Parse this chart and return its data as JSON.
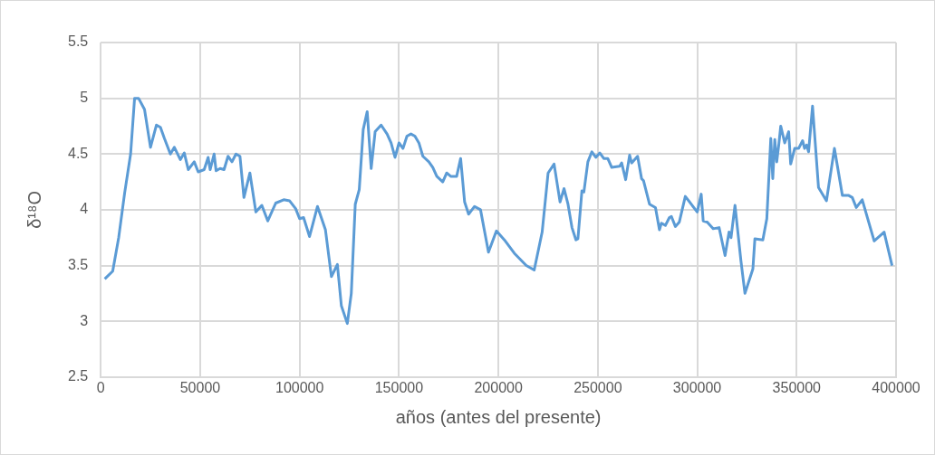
{
  "chart_data": {
    "type": "line",
    "xlabel": "años (antes del presente)",
    "ylabel": "δ¹⁸O",
    "xlim": [
      0,
      400000
    ],
    "xticks": [
      0,
      50000,
      100000,
      150000,
      200000,
      250000,
      300000,
      350000,
      400000
    ],
    "ylim": [
      2.5,
      5.5
    ],
    "yticks": [
      2.5,
      3,
      3.5,
      4,
      4.5,
      5,
      5.5
    ],
    "grid": true,
    "marker": "none",
    "line_style": "solid",
    "series": [
      {
        "color": "#5b9bd5",
        "x": [
          2000,
          6000,
          9000,
          12000,
          15000,
          17000,
          19000,
          22000,
          25000,
          28000,
          30000,
          32000,
          35000,
          37000,
          40000,
          42000,
          44000,
          47000,
          49000,
          52000,
          54000,
          55000,
          57000,
          58000,
          60000,
          62000,
          64000,
          66000,
          68000,
          70000,
          72000,
          75000,
          78000,
          81000,
          84000,
          88000,
          92000,
          95000,
          98000,
          100000,
          102000,
          105000,
          109000,
          113000,
          116000,
          119000,
          121000,
          124000,
          126000,
          128000,
          130000,
          132000,
          134000,
          136000,
          138000,
          141000,
          144000,
          146000,
          148000,
          150000,
          152000,
          154000,
          156000,
          158000,
          160000,
          162000,
          165000,
          167000,
          169000,
          172000,
          174000,
          176000,
          179000,
          181000,
          183000,
          185000,
          188000,
          191000,
          195000,
          199000,
          203000,
          208000,
          214000,
          218000,
          222000,
          225000,
          228000,
          231000,
          233000,
          235000,
          237000,
          239000,
          240000,
          242000,
          243000,
          245000,
          247000,
          249000,
          251000,
          253000,
          255000,
          257000,
          261000,
          262000,
          264000,
          266000,
          267000,
          270000,
          272000,
          273000,
          276000,
          279000,
          281000,
          282000,
          284000,
          286000,
          287000,
          289000,
          291000,
          294000,
          300000,
          302000,
          303000,
          305000,
          308000,
          311000,
          314000,
          316000,
          317000,
          319000,
          322000,
          324000,
          328000,
          329000,
          333000,
          335000,
          337000,
          338000,
          339000,
          340000,
          341000,
          342000,
          344000,
          346000,
          347000,
          349000,
          351000,
          353000,
          354000,
          355000,
          356000,
          358000,
          361000,
          365000,
          369000,
          373000,
          376000,
          378000,
          380000,
          383000,
          389000,
          394000,
          398000
        ],
        "values": [
          3.38,
          3.45,
          3.75,
          4.15,
          4.5,
          5.0,
          5.0,
          4.9,
          4.56,
          4.76,
          4.74,
          4.64,
          4.5,
          4.56,
          4.45,
          4.51,
          4.36,
          4.43,
          4.34,
          4.36,
          4.47,
          4.36,
          4.5,
          4.35,
          4.37,
          4.36,
          4.48,
          4.43,
          4.5,
          4.48,
          4.11,
          4.33,
          3.98,
          4.04,
          3.9,
          4.06,
          4.09,
          4.08,
          4.01,
          3.92,
          3.93,
          3.76,
          4.03,
          3.82,
          3.4,
          3.51,
          3.14,
          2.98,
          3.25,
          4.05,
          4.18,
          4.72,
          4.88,
          4.37,
          4.7,
          4.76,
          4.68,
          4.6,
          4.47,
          4.6,
          4.55,
          4.66,
          4.68,
          4.66,
          4.6,
          4.48,
          4.43,
          4.38,
          4.3,
          4.25,
          4.33,
          4.3,
          4.3,
          4.46,
          4.07,
          3.96,
          4.03,
          4.0,
          3.62,
          3.81,
          3.73,
          3.61,
          3.5,
          3.46,
          3.8,
          4.33,
          4.41,
          4.07,
          4.19,
          4.05,
          3.84,
          3.73,
          3.74,
          4.17,
          4.16,
          4.43,
          4.52,
          4.47,
          4.51,
          4.46,
          4.46,
          4.38,
          4.39,
          4.42,
          4.27,
          4.49,
          4.42,
          4.48,
          4.28,
          4.26,
          4.05,
          4.02,
          3.82,
          3.88,
          3.86,
          3.93,
          3.94,
          3.85,
          3.89,
          4.12,
          3.98,
          4.14,
          3.9,
          3.89,
          3.83,
          3.84,
          3.59,
          3.8,
          3.75,
          4.04,
          3.54,
          3.25,
          3.47,
          3.74,
          3.73,
          3.92,
          4.64,
          4.28,
          4.63,
          4.43,
          4.58,
          4.75,
          4.6,
          4.7,
          4.41,
          4.55,
          4.55,
          4.62,
          4.55,
          4.58,
          4.52,
          4.93,
          4.2,
          4.08,
          4.55,
          4.13,
          4.13,
          4.11,
          4.02,
          4.09,
          3.72,
          3.8,
          3.5
        ]
      }
    ]
  }
}
